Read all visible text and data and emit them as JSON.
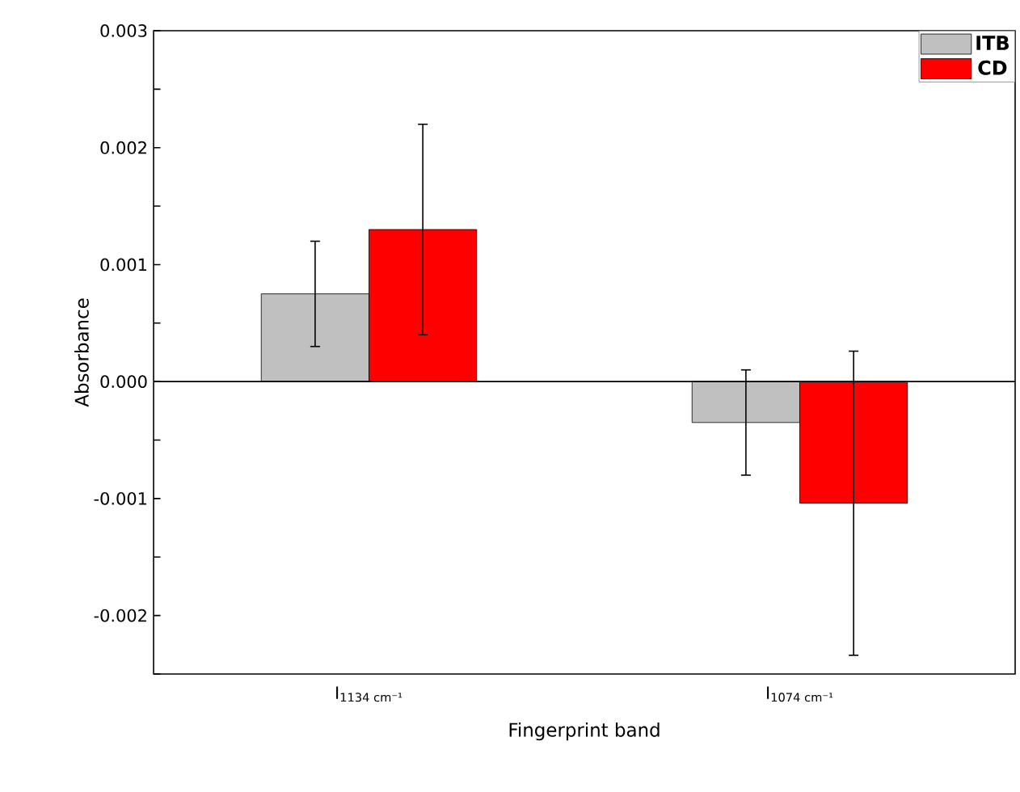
{
  "chart_data": {
    "type": "bar",
    "xlabel": "Fingerprint band",
    "ylabel": "Absorbance",
    "categories": [
      "I$_{1134 cm⁻¹}$",
      "I$_{1074 cm⁻¹}$"
    ],
    "series": [
      {
        "name": "ITB",
        "color": "#c0c0c0",
        "values": [
          0.00075,
          -0.00035
        ],
        "errors": [
          0.00045,
          0.00045
        ]
      },
      {
        "name": "CD",
        "color": "#ff0000",
        "values": [
          0.0013,
          -0.00104
        ],
        "errors": [
          0.0009,
          0.0013
        ]
      }
    ],
    "ylim": [
      -0.0025,
      0.003
    ],
    "yticks": [
      {
        "value": -0.0025,
        "label": null
      },
      {
        "value": -0.002,
        "label": "-0.002"
      },
      {
        "value": -0.0015,
        "label": null
      },
      {
        "value": -0.001,
        "label": "-0.001"
      },
      {
        "value": -0.0005,
        "label": null
      },
      {
        "value": 0,
        "label": "0.000"
      },
      {
        "value": 0.0005,
        "label": null
      },
      {
        "value": 0.001,
        "label": "0.001"
      },
      {
        "value": 0.0015,
        "label": null
      },
      {
        "value": 0.002,
        "label": "0.002"
      },
      {
        "value": 0.0025,
        "label": null
      },
      {
        "value": 0.003,
        "label": "0.003"
      }
    ],
    "legend": "top right"
  }
}
